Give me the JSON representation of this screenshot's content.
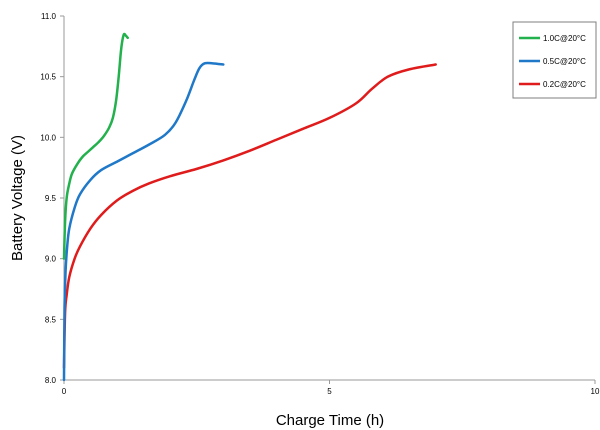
{
  "chart_data": {
    "type": "line",
    "title": "",
    "xlabel": "Charge Time  (h)",
    "ylabel": "Battery Voltage (V)",
    "xlim": [
      0,
      10
    ],
    "ylim": [
      8.0,
      11.0
    ],
    "x_ticks": [
      "0",
      "5",
      "10"
    ],
    "y_ticks": [
      "8.0",
      "8.5",
      "9.0",
      "9.5",
      "10.0",
      "10.5",
      "11.0"
    ],
    "grid": false,
    "legend_position": "top-right",
    "series": [
      {
        "name": "1.0C@20°C",
        "color": "#22b14c",
        "points": [
          [
            0.0,
            9.0
          ],
          [
            0.02,
            9.3
          ],
          [
            0.05,
            9.5
          ],
          [
            0.1,
            9.62
          ],
          [
            0.15,
            9.7
          ],
          [
            0.25,
            9.78
          ],
          [
            0.35,
            9.84
          ],
          [
            0.45,
            9.88
          ],
          [
            0.55,
            9.92
          ],
          [
            0.65,
            9.96
          ],
          [
            0.75,
            10.01
          ],
          [
            0.85,
            10.08
          ],
          [
            0.92,
            10.16
          ],
          [
            0.98,
            10.3
          ],
          [
            1.03,
            10.5
          ],
          [
            1.07,
            10.7
          ],
          [
            1.1,
            10.8
          ],
          [
            1.13,
            10.85
          ],
          [
            1.16,
            10.84
          ],
          [
            1.2,
            10.82
          ]
        ]
      },
      {
        "name": "0.5C@20°C",
        "color": "#1f78c8",
        "points": [
          [
            0.0,
            8.0
          ],
          [
            0.01,
            8.6
          ],
          [
            0.03,
            8.9
          ],
          [
            0.06,
            9.1
          ],
          [
            0.1,
            9.25
          ],
          [
            0.2,
            9.42
          ],
          [
            0.3,
            9.53
          ],
          [
            0.5,
            9.65
          ],
          [
            0.7,
            9.73
          ],
          [
            1.0,
            9.8
          ],
          [
            1.3,
            9.87
          ],
          [
            1.6,
            9.94
          ],
          [
            1.9,
            10.02
          ],
          [
            2.1,
            10.12
          ],
          [
            2.3,
            10.3
          ],
          [
            2.45,
            10.47
          ],
          [
            2.55,
            10.57
          ],
          [
            2.65,
            10.61
          ],
          [
            2.8,
            10.61
          ],
          [
            3.0,
            10.6
          ]
        ]
      },
      {
        "name": "0.2C@20°C",
        "color": "#e01b1b",
        "points": [
          [
            0.0,
            8.1
          ],
          [
            0.02,
            8.55
          ],
          [
            0.05,
            8.7
          ],
          [
            0.1,
            8.85
          ],
          [
            0.2,
            9.0
          ],
          [
            0.3,
            9.1
          ],
          [
            0.5,
            9.25
          ],
          [
            0.7,
            9.36
          ],
          [
            1.0,
            9.48
          ],
          [
            1.3,
            9.56
          ],
          [
            1.6,
            9.62
          ],
          [
            2.0,
            9.68
          ],
          [
            2.5,
            9.74
          ],
          [
            3.0,
            9.81
          ],
          [
            3.5,
            9.89
          ],
          [
            4.0,
            9.98
          ],
          [
            4.5,
            10.07
          ],
          [
            5.0,
            10.16
          ],
          [
            5.5,
            10.28
          ],
          [
            5.8,
            10.4
          ],
          [
            6.1,
            10.5
          ],
          [
            6.5,
            10.56
          ],
          [
            7.0,
            10.6
          ]
        ]
      }
    ]
  }
}
